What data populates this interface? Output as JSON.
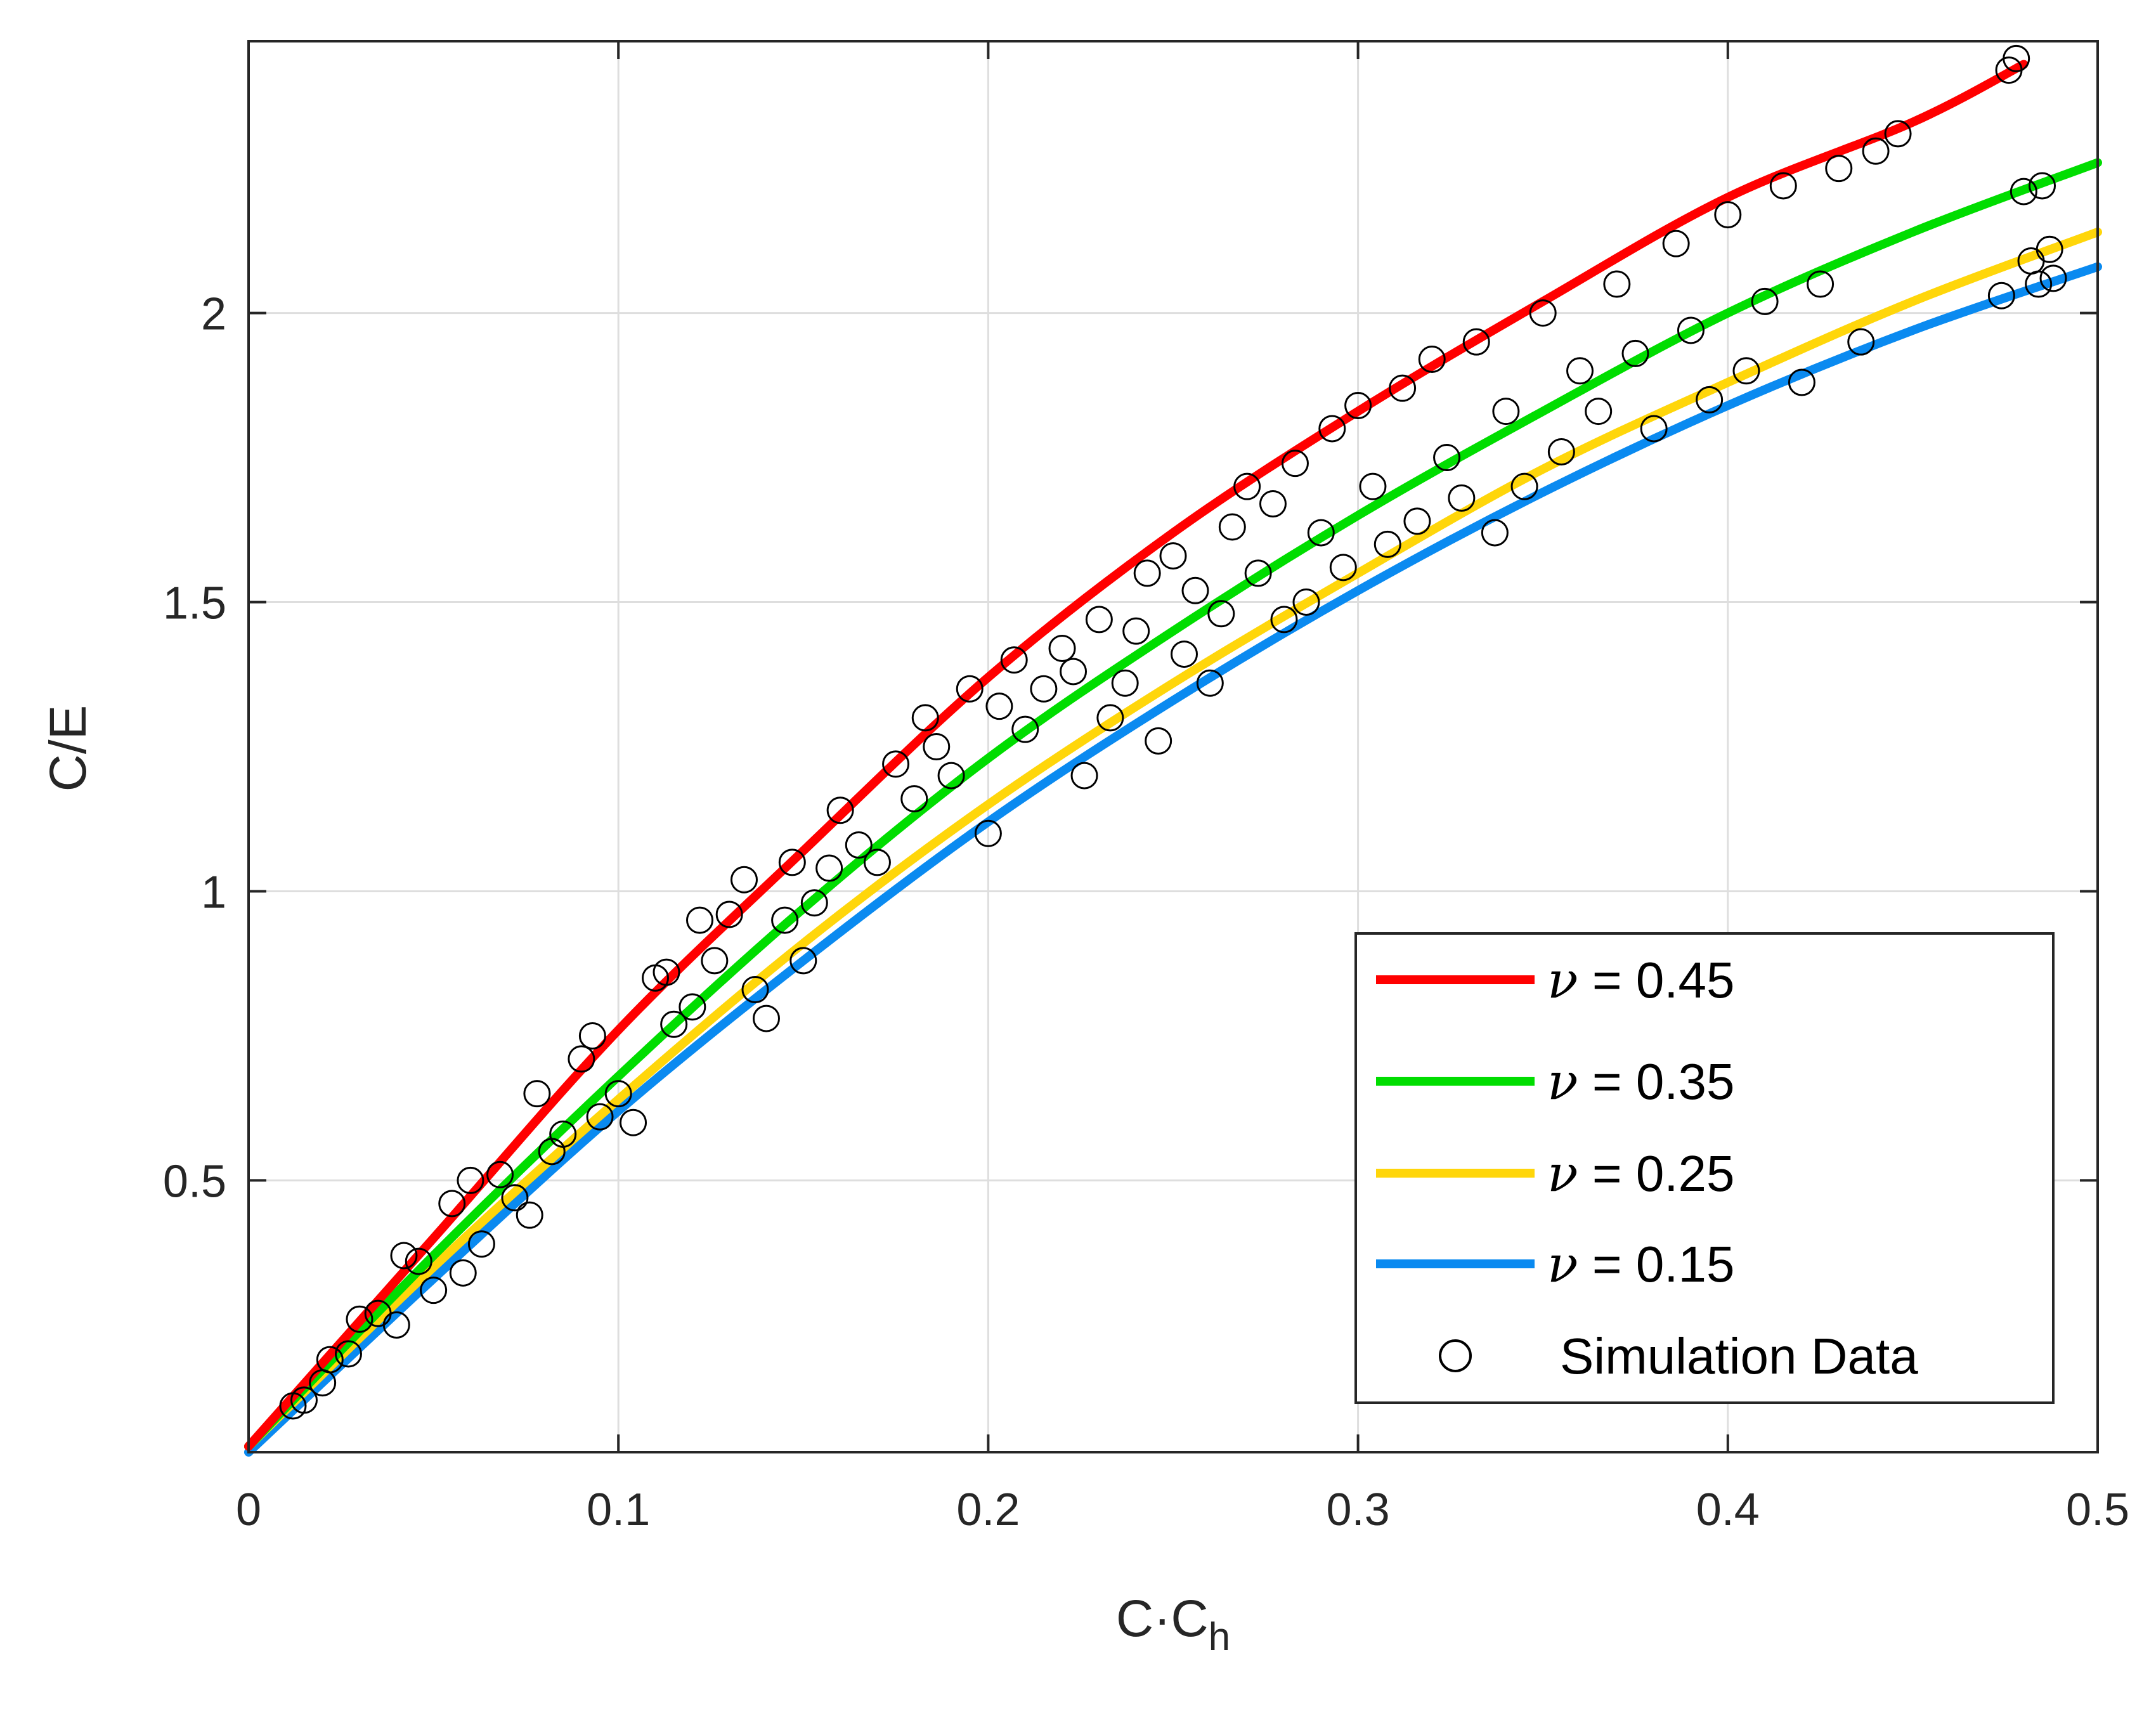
{
  "chart_data": {
    "type": "line",
    "title": "",
    "xlabel": "C·C",
    "xlabel_subscript": "h",
    "ylabel": "C/E",
    "xlim": [
      0,
      0.5
    ],
    "ylim": [
      0.03,
      2.47
    ],
    "grid": true,
    "x_ticks": [
      {
        "value": 0,
        "label": "0"
      },
      {
        "value": 0.1,
        "label": "0.1"
      },
      {
        "value": 0.2,
        "label": "0.2"
      },
      {
        "value": 0.3,
        "label": "0.3"
      },
      {
        "value": 0.4,
        "label": "0.4"
      },
      {
        "value": 0.5,
        "label": "0.5"
      }
    ],
    "y_ticks": [
      {
        "value": 0.5,
        "label": "0.5"
      },
      {
        "value": 1,
        "label": "1"
      },
      {
        "value": 1.5,
        "label": "1.5"
      },
      {
        "value": 2,
        "label": "2"
      }
    ],
    "series": [
      {
        "name": "ν = 0.45",
        "nu_symbol": "ν",
        "value_text": "= 0.45",
        "color": "#ff0000",
        "x": [
          0,
          0.05,
          0.1,
          0.15,
          0.2,
          0.25,
          0.3,
          0.35,
          0.4,
          0.45,
          0.48
        ],
        "y": [
          0.04,
          0.4,
          0.76,
          1.07,
          1.37,
          1.62,
          1.83,
          2.02,
          2.2,
          2.33,
          2.43
        ]
      },
      {
        "name": "ν = 0.35",
        "nu_symbol": "ν",
        "value_text": "= 0.35",
        "color": "#00dd00",
        "x": [
          0,
          0.05,
          0.1,
          0.15,
          0.2,
          0.25,
          0.3,
          0.35,
          0.4,
          0.45,
          0.5
        ],
        "y": [
          0.04,
          0.37,
          0.68,
          0.97,
          1.23,
          1.45,
          1.65,
          1.83,
          2.0,
          2.14,
          2.26
        ]
      },
      {
        "name": "ν = 0.25",
        "nu_symbol": "ν",
        "value_text": "= 0.25",
        "color": "#ffd60a",
        "x": [
          0,
          0.05,
          0.1,
          0.15,
          0.2,
          0.25,
          0.3,
          0.35,
          0.4,
          0.45,
          0.5
        ],
        "y": [
          0.04,
          0.35,
          0.64,
          0.91,
          1.15,
          1.36,
          1.55,
          1.73,
          1.88,
          2.02,
          2.14
        ]
      },
      {
        "name": "ν = 0.15",
        "nu_symbol": "ν",
        "value_text": "= 0.15",
        "color": "#0a8af0",
        "x": [
          0,
          0.05,
          0.1,
          0.15,
          0.2,
          0.25,
          0.3,
          0.35,
          0.4,
          0.45,
          0.5
        ],
        "y": [
          0.03,
          0.33,
          0.62,
          0.88,
          1.12,
          1.33,
          1.52,
          1.69,
          1.84,
          1.97,
          2.08
        ]
      }
    ],
    "scatter": {
      "name": "Simulation Data",
      "marker": "open-circle",
      "points": [
        [
          0.012,
          0.11
        ],
        [
          0.015,
          0.12
        ],
        [
          0.02,
          0.15
        ],
        [
          0.022,
          0.19
        ],
        [
          0.027,
          0.2
        ],
        [
          0.03,
          0.26
        ],
        [
          0.035,
          0.27
        ],
        [
          0.04,
          0.25
        ],
        [
          0.042,
          0.37
        ],
        [
          0.046,
          0.36
        ],
        [
          0.05,
          0.31
        ],
        [
          0.055,
          0.46
        ],
        [
          0.058,
          0.34
        ],
        [
          0.06,
          0.5
        ],
        [
          0.063,
          0.39
        ],
        [
          0.068,
          0.51
        ],
        [
          0.072,
          0.47
        ],
        [
          0.076,
          0.44
        ],
        [
          0.078,
          0.65
        ],
        [
          0.082,
          0.55
        ],
        [
          0.085,
          0.58
        ],
        [
          0.09,
          0.71
        ],
        [
          0.093,
          0.75
        ],
        [
          0.095,
          0.61
        ],
        [
          0.1,
          0.65
        ],
        [
          0.104,
          0.6
        ],
        [
          0.11,
          0.85
        ],
        [
          0.113,
          0.86
        ],
        [
          0.115,
          0.77
        ],
        [
          0.12,
          0.8
        ],
        [
          0.122,
          0.95
        ],
        [
          0.126,
          0.88
        ],
        [
          0.13,
          0.96
        ],
        [
          0.134,
          1.02
        ],
        [
          0.137,
          0.83
        ],
        [
          0.14,
          0.78
        ],
        [
          0.145,
          0.95
        ],
        [
          0.147,
          1.05
        ],
        [
          0.15,
          0.88
        ],
        [
          0.153,
          0.98
        ],
        [
          0.157,
          1.04
        ],
        [
          0.16,
          1.14
        ],
        [
          0.165,
          1.08
        ],
        [
          0.17,
          1.05
        ],
        [
          0.175,
          1.22
        ],
        [
          0.18,
          1.16
        ],
        [
          0.183,
          1.3
        ],
        [
          0.186,
          1.25
        ],
        [
          0.19,
          1.2
        ],
        [
          0.195,
          1.35
        ],
        [
          0.2,
          1.1
        ],
        [
          0.203,
          1.32
        ],
        [
          0.207,
          1.4
        ],
        [
          0.21,
          1.28
        ],
        [
          0.215,
          1.35
        ],
        [
          0.22,
          1.42
        ],
        [
          0.223,
          1.38
        ],
        [
          0.226,
          1.2
        ],
        [
          0.23,
          1.47
        ],
        [
          0.233,
          1.3
        ],
        [
          0.237,
          1.36
        ],
        [
          0.24,
          1.45
        ],
        [
          0.243,
          1.55
        ],
        [
          0.246,
          1.26
        ],
        [
          0.25,
          1.58
        ],
        [
          0.253,
          1.41
        ],
        [
          0.256,
          1.52
        ],
        [
          0.26,
          1.36
        ],
        [
          0.263,
          1.48
        ],
        [
          0.266,
          1.63
        ],
        [
          0.27,
          1.7
        ],
        [
          0.273,
          1.55
        ],
        [
          0.277,
          1.67
        ],
        [
          0.28,
          1.47
        ],
        [
          0.283,
          1.74
        ],
        [
          0.286,
          1.5
        ],
        [
          0.29,
          1.62
        ],
        [
          0.293,
          1.8
        ],
        [
          0.296,
          1.56
        ],
        [
          0.3,
          1.84
        ],
        [
          0.304,
          1.7
        ],
        [
          0.308,
          1.6
        ],
        [
          0.312,
          1.87
        ],
        [
          0.316,
          1.64
        ],
        [
          0.32,
          1.92
        ],
        [
          0.324,
          1.75
        ],
        [
          0.328,
          1.68
        ],
        [
          0.332,
          1.95
        ],
        [
          0.337,
          1.62
        ],
        [
          0.34,
          1.83
        ],
        [
          0.345,
          1.7
        ],
        [
          0.35,
          2.0
        ],
        [
          0.355,
          1.76
        ],
        [
          0.36,
          1.9
        ],
        [
          0.365,
          1.83
        ],
        [
          0.37,
          2.05
        ],
        [
          0.375,
          1.93
        ],
        [
          0.38,
          1.8
        ],
        [
          0.386,
          2.12
        ],
        [
          0.39,
          1.97
        ],
        [
          0.395,
          1.85
        ],
        [
          0.4,
          2.17
        ],
        [
          0.405,
          1.9
        ],
        [
          0.41,
          2.02
        ],
        [
          0.415,
          2.22
        ],
        [
          0.42,
          1.88
        ],
        [
          0.425,
          2.05
        ],
        [
          0.43,
          2.25
        ],
        [
          0.436,
          1.95
        ],
        [
          0.44,
          2.28
        ],
        [
          0.446,
          2.31
        ],
        [
          0.474,
          2.03
        ],
        [
          0.476,
          2.42
        ],
        [
          0.478,
          2.44
        ],
        [
          0.48,
          2.21
        ],
        [
          0.482,
          2.09
        ],
        [
          0.484,
          2.05
        ],
        [
          0.485,
          2.22
        ],
        [
          0.487,
          2.11
        ],
        [
          0.488,
          2.06
        ]
      ]
    }
  }
}
